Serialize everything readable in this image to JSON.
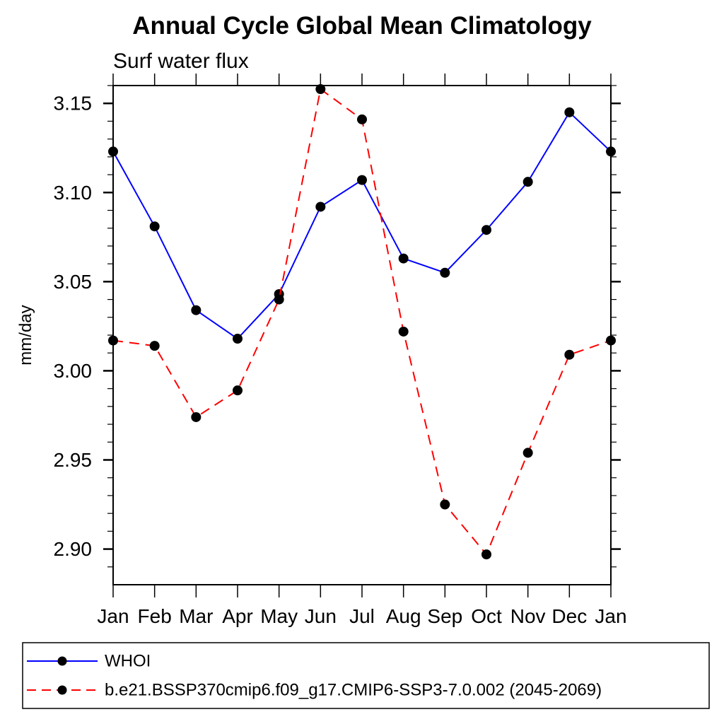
{
  "chart_data": {
    "type": "line",
    "title": "Annual Cycle Global Mean Climatology",
    "subtitle": "Surf water flux",
    "xlabel": "",
    "ylabel": "mm/day",
    "categories": [
      "Jan",
      "Feb",
      "Mar",
      "Apr",
      "May",
      "Jun",
      "Jul",
      "Aug",
      "Sep",
      "Oct",
      "Nov",
      "Dec",
      "Jan"
    ],
    "ylim": [
      2.88,
      3.16
    ],
    "ytick_major_step": 0.05,
    "ytick_minor_step": 0.01,
    "ytick_major_labels": [
      "2.90",
      "2.95",
      "3.00",
      "3.05",
      "3.10",
      "3.15"
    ],
    "grid": false,
    "legend_position": "bottom-left",
    "marker_color": "#000000",
    "series": [
      {
        "name": "WHOI",
        "color": "#0000ff",
        "line_style": "solid",
        "marker": "circle",
        "values": [
          3.123,
          3.081,
          3.034,
          3.018,
          3.043,
          3.092,
          3.107,
          3.063,
          3.055,
          3.079,
          3.106,
          3.145,
          3.123
        ]
      },
      {
        "name": "b.e21.BSSP370cmip6.f09_g17.CMIP6-SSP3-7.0.002 (2045-2069)",
        "color": "#ff0000",
        "line_style": "dashed",
        "marker": "circle",
        "values": [
          3.017,
          3.014,
          2.974,
          2.989,
          3.04,
          3.158,
          3.141,
          3.022,
          2.925,
          2.897,
          2.954,
          3.009,
          3.017
        ]
      }
    ]
  }
}
